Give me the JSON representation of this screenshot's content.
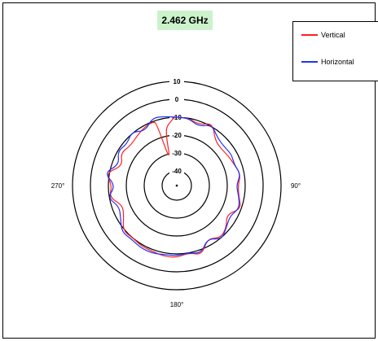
{
  "chart_data": {
    "type": "polar-line",
    "title": "2.462 GHz",
    "legend_placement": "top-right",
    "radial_ticks": [
      "10",
      "0",
      "-10",
      "-20",
      "-30",
      "-40"
    ],
    "angle_labels": [
      {
        "angle": 90,
        "label": "90°"
      },
      {
        "angle": 180,
        "label": "180°"
      },
      {
        "angle": 270,
        "label": "270°"
      }
    ],
    "rlim": [
      -50,
      10
    ],
    "grid": true,
    "series": [
      {
        "name": "Vertical",
        "color": "#ff2020",
        "theta": [
          0,
          10,
          20,
          30,
          40,
          50,
          60,
          70,
          80,
          90,
          100,
          110,
          120,
          130,
          140,
          150,
          160,
          170,
          180,
          190,
          200,
          210,
          220,
          230,
          240,
          250,
          260,
          270,
          280,
          290,
          300,
          310,
          320,
          330,
          340,
          342,
          345,
          348,
          350,
          355,
          358,
          360
        ],
        "r": [
          -10,
          -10,
          -12,
          -8,
          -15,
          -16,
          -15,
          -14,
          -12,
          -14,
          -13,
          -10,
          -16,
          -12,
          -10,
          -14,
          -7,
          -10,
          -8,
          -8,
          -9,
          -9,
          -10,
          -9,
          -14,
          -16,
          -10,
          -12,
          -8,
          -16,
          -12,
          -14,
          -13,
          -11,
          -10,
          -12,
          -35,
          -20,
          -15,
          -12,
          -10,
          -10
        ]
      },
      {
        "name": "Horizontal",
        "color": "#2030ff",
        "theta": [
          0,
          10,
          20,
          30,
          40,
          50,
          60,
          70,
          80,
          90,
          100,
          110,
          120,
          130,
          140,
          150,
          160,
          170,
          180,
          190,
          200,
          210,
          220,
          230,
          240,
          250,
          260,
          270,
          280,
          290,
          300,
          310,
          320,
          330,
          340,
          350,
          360
        ],
        "r": [
          -10,
          -10,
          -13,
          -9,
          -13,
          -14,
          -13,
          -14,
          -12,
          -15,
          -13,
          -11,
          -14,
          -12,
          -9,
          -14,
          -8,
          -10,
          -9,
          -9,
          -8,
          -8,
          -9,
          -8,
          -12,
          -14,
          -9,
          -14,
          -7,
          -14,
          -10,
          -12,
          -9,
          -13,
          -8,
          -9,
          -10
        ]
      }
    ]
  }
}
